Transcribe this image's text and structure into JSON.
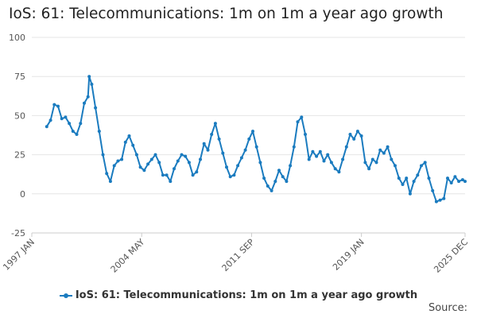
{
  "title": "IoS: 61: Telecommunications: 1m on 1m a year ago growth",
  "source_label": "Source:",
  "colors": {
    "series": "#1a7bbf",
    "grid": "#e6e6e6",
    "axis": "#cccccc"
  },
  "chart_data": {
    "type": "line",
    "title": "IoS: 61: Telecommunications: 1m on 1m a year ago growth",
    "xlabel": "",
    "ylabel": "",
    "ylim": [
      -25,
      100
    ],
    "yticks": [
      100,
      75,
      50,
      25,
      0,
      -25
    ],
    "xlim": [
      "1997 JAN",
      "2025 DEC"
    ],
    "xticks": [
      "1997 JAN",
      "2004 MAY",
      "2011 SEP",
      "2019 JAN",
      "2025 DEC"
    ],
    "grid": true,
    "legend_position": "bottom",
    "series": [
      {
        "name": "IoS: 61: Telecommunications: 1m on 1m a year ago growth",
        "points": [
          [
            "1998 JAN",
            43
          ],
          [
            "1998 APR",
            47
          ],
          [
            "1998 JUL",
            57
          ],
          [
            "1998 OCT",
            56
          ],
          [
            "1999 JAN",
            48
          ],
          [
            "1999 APR",
            49
          ],
          [
            "1999 JUL",
            45
          ],
          [
            "1999 OCT",
            40
          ],
          [
            "2000 JAN",
            38
          ],
          [
            "2000 APR",
            45
          ],
          [
            "2000 JUL",
            58
          ],
          [
            "2000 OCT",
            62
          ],
          [
            "2000 NOV",
            75
          ],
          [
            "2001 JAN",
            70
          ],
          [
            "2001 APR",
            55
          ],
          [
            "2001 JUL",
            40
          ],
          [
            "2001 OCT",
            25
          ],
          [
            "2002 JAN",
            13
          ],
          [
            "2002 APR",
            8
          ],
          [
            "2002 JUL",
            18
          ],
          [
            "2002 OCT",
            21
          ],
          [
            "2003 JAN",
            22
          ],
          [
            "2003 APR",
            33
          ],
          [
            "2003 JUL",
            37
          ],
          [
            "2003 OCT",
            31
          ],
          [
            "2004 JAN",
            25
          ],
          [
            "2004 APR",
            17
          ],
          [
            "2004 JUL",
            15
          ],
          [
            "2004 OCT",
            19
          ],
          [
            "2005 JAN",
            22
          ],
          [
            "2005 APR",
            25
          ],
          [
            "2005 JUL",
            20
          ],
          [
            "2005 OCT",
            12
          ],
          [
            "2006 JAN",
            12
          ],
          [
            "2006 APR",
            8
          ],
          [
            "2006 JUL",
            16
          ],
          [
            "2006 OCT",
            21
          ],
          [
            "2007 JAN",
            25
          ],
          [
            "2007 APR",
            24
          ],
          [
            "2007 JUL",
            20
          ],
          [
            "2007 OCT",
            12
          ],
          [
            "2008 JAN",
            14
          ],
          [
            "2008 APR",
            22
          ],
          [
            "2008 JUL",
            32
          ],
          [
            "2008 OCT",
            28
          ],
          [
            "2009 JAN",
            38
          ],
          [
            "2009 APR",
            45
          ],
          [
            "2009 JUL",
            35
          ],
          [
            "2009 OCT",
            26
          ],
          [
            "2010 JAN",
            17
          ],
          [
            "2010 APR",
            11
          ],
          [
            "2010 JUL",
            12
          ],
          [
            "2010 OCT",
            18
          ],
          [
            "2011 JAN",
            23
          ],
          [
            "2011 APR",
            28
          ],
          [
            "2011 JUL",
            35
          ],
          [
            "2011 OCT",
            40
          ],
          [
            "2012 JAN",
            30
          ],
          [
            "2012 APR",
            20
          ],
          [
            "2012 JUL",
            10
          ],
          [
            "2012 OCT",
            5
          ],
          [
            "2013 JAN",
            2
          ],
          [
            "2013 APR",
            8
          ],
          [
            "2013 JUL",
            15
          ],
          [
            "2013 OCT",
            11
          ],
          [
            "2014 JAN",
            8
          ],
          [
            "2014 APR",
            18
          ],
          [
            "2014 JUL",
            30
          ],
          [
            "2014 OCT",
            46
          ],
          [
            "2015 JAN",
            49
          ],
          [
            "2015 APR",
            38
          ],
          [
            "2015 JUL",
            22
          ],
          [
            "2015 OCT",
            27
          ],
          [
            "2016 JAN",
            24
          ],
          [
            "2016 APR",
            27
          ],
          [
            "2016 JUL",
            21
          ],
          [
            "2016 OCT",
            25
          ],
          [
            "2017 JAN",
            20
          ],
          [
            "2017 APR",
            16
          ],
          [
            "2017 JUL",
            14
          ],
          [
            "2017 OCT",
            22
          ],
          [
            "2018 JAN",
            30
          ],
          [
            "2018 APR",
            38
          ],
          [
            "2018 JUL",
            35
          ],
          [
            "2018 OCT",
            40
          ],
          [
            "2019 JAN",
            37
          ],
          [
            "2019 APR",
            20
          ],
          [
            "2019 JUL",
            16
          ],
          [
            "2019 OCT",
            22
          ],
          [
            "2020 JAN",
            20
          ],
          [
            "2020 APR",
            28
          ],
          [
            "2020 JUL",
            26
          ],
          [
            "2020 OCT",
            30
          ],
          [
            "2021 JAN",
            22
          ],
          [
            "2021 APR",
            18
          ],
          [
            "2021 JUL",
            10
          ],
          [
            "2021 OCT",
            6
          ],
          [
            "2022 JAN",
            10
          ],
          [
            "2022 APR",
            0
          ],
          [
            "2022 JUL",
            8
          ],
          [
            "2022 OCT",
            12
          ],
          [
            "2023 JAN",
            18
          ],
          [
            "2023 APR",
            20
          ],
          [
            "2023 JUL",
            10
          ],
          [
            "2023 OCT",
            2
          ],
          [
            "2024 JAN",
            -5
          ],
          [
            "2024 APR",
            -4
          ],
          [
            "2024 JUL",
            -3
          ],
          [
            "2024 OCT",
            10
          ],
          [
            "2025 JAN",
            7
          ],
          [
            "2025 APR",
            11
          ],
          [
            "2025 JUL",
            8
          ],
          [
            "2025 OCT",
            9
          ],
          [
            "2025 DEC",
            8
          ]
        ]
      }
    ]
  }
}
